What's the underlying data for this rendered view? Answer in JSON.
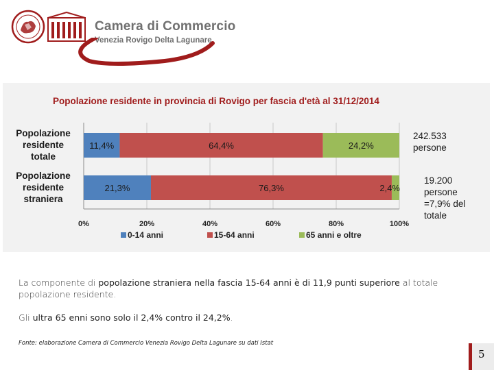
{
  "header": {
    "logo_name": "Camera di Commercio",
    "logo_subtitle": "Venezia Rovigo Delta Lagunare",
    "brand_red": "#a01c1c",
    "brand_gray": "#707070"
  },
  "chart_data": {
    "type": "bar",
    "stacked": true,
    "orientation": "horizontal",
    "title": "Popolazione residente in provincia di Rovigo per fascia d'età al 31/12/2014",
    "categories": [
      "Popolazione residente totale",
      "Popolazione residente straniera"
    ],
    "category_lines": [
      [
        "Popolazione",
        "residente",
        "totale"
      ],
      [
        "Popolazione",
        "residente",
        "straniera"
      ]
    ],
    "series": [
      {
        "name": "0-14 anni",
        "values": [
          11.4,
          21.3
        ],
        "labels": [
          "11,4%",
          "21,3%"
        ],
        "color": "#4f81bd"
      },
      {
        "name": "15-64 anni",
        "values": [
          64.4,
          76.3
        ],
        "labels": [
          "64,4%",
          "76,3%"
        ],
        "color": "#c0504d"
      },
      {
        "name": "65 anni e oltre",
        "values": [
          24.2,
          2.4
        ],
        "labels": [
          "24,2%",
          "2,4%"
        ],
        "color": "#9bbb59"
      }
    ],
    "xlim": [
      0,
      100
    ],
    "x_ticks": [
      "0%",
      "20%",
      "40%",
      "60%",
      "80%",
      "100%"
    ],
    "grid": true,
    "legend": "bottom",
    "annotations": [
      [
        "242.533",
        "persone"
      ],
      [
        "19.200",
        "persone",
        "=7,9% del",
        "totale"
      ]
    ]
  },
  "body": {
    "p1_a": "La componente di ",
    "p1_b": "popolazione straniera nella fascia 15-64 anni è di 11,9 punti superiore",
    "p1_c": " al totale popolazione residente.",
    "p2_a": "Gli ",
    "p2_b": "ultra 65 enni sono solo il 2,4% contro il 24,2%",
    "p2_c": "."
  },
  "source": "Fonte: elaborazione Camera di Commercio Venezia Rovigo Delta Lagunare su dati Istat",
  "page_number": "5"
}
